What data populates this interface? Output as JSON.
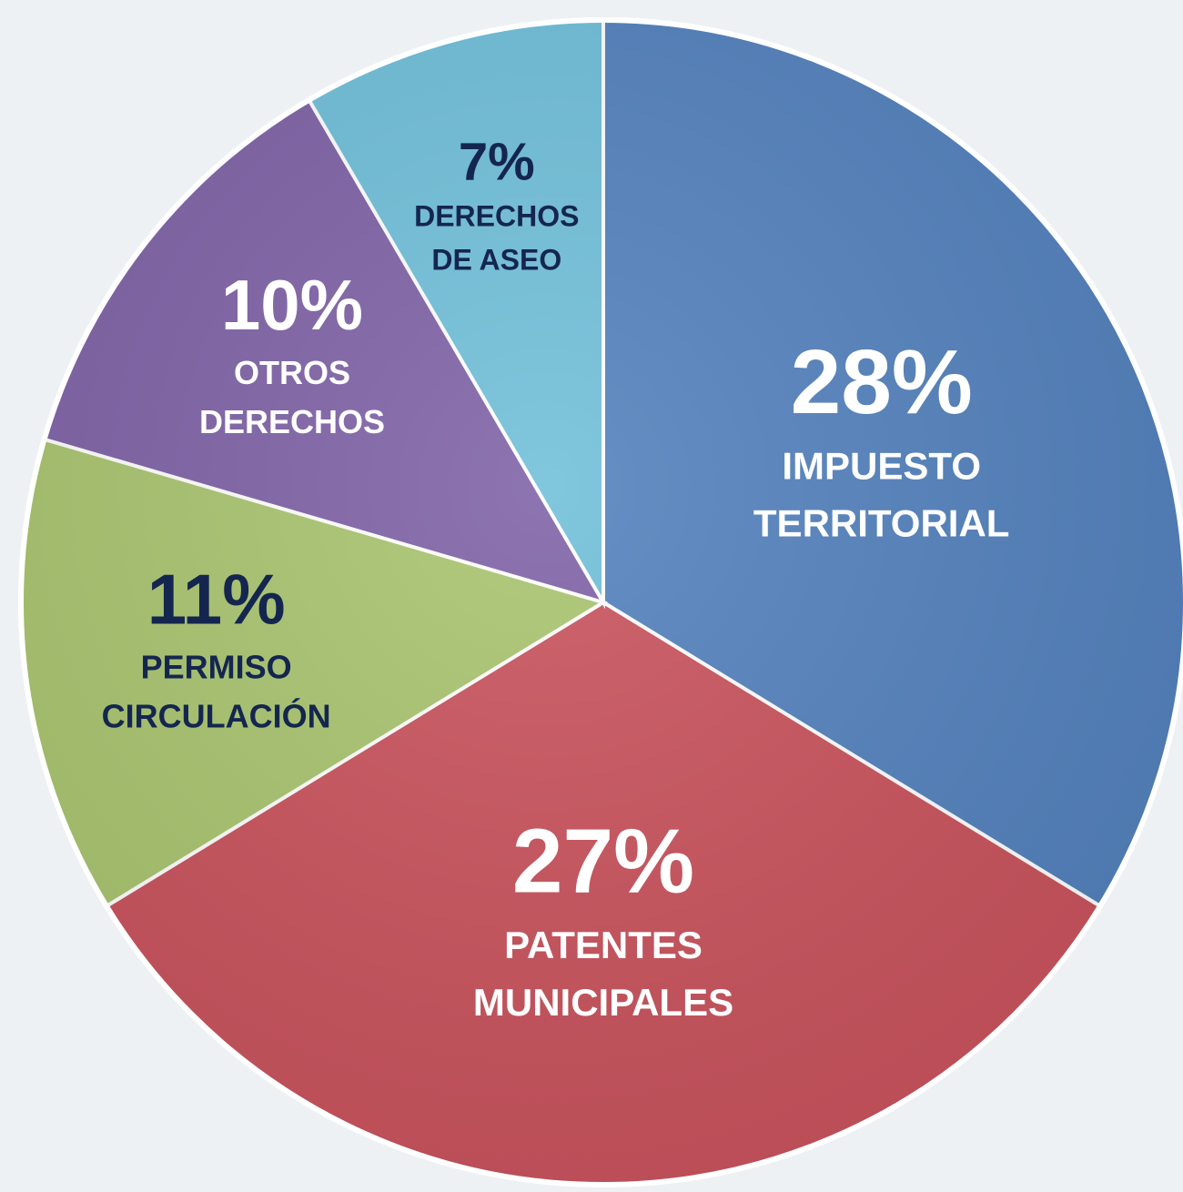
{
  "chart_data": {
    "type": "pie",
    "categories": [
      [
        "IMPUESTO",
        "TERRITORIAL"
      ],
      [
        "PATENTES",
        "MUNICIPALES"
      ],
      [
        "PERMISO",
        "CIRCULACIÓN"
      ],
      [
        "OTROS",
        "DERECHOS"
      ],
      [
        "DERECHOS",
        "DE ASEO"
      ]
    ],
    "values": [
      28,
      27,
      11,
      10,
      7
    ],
    "value_labels": [
      "28%",
      "27%",
      "11%",
      "10%",
      "7%"
    ],
    "colors": [
      "#5281bd",
      "#c9525c",
      "#a9c46e",
      "#7e62a6",
      "#6fbfd9"
    ],
    "label_colors": [
      "#ffffff",
      "#ffffff",
      "#14264f",
      "#ffffff",
      "#14264f"
    ]
  }
}
